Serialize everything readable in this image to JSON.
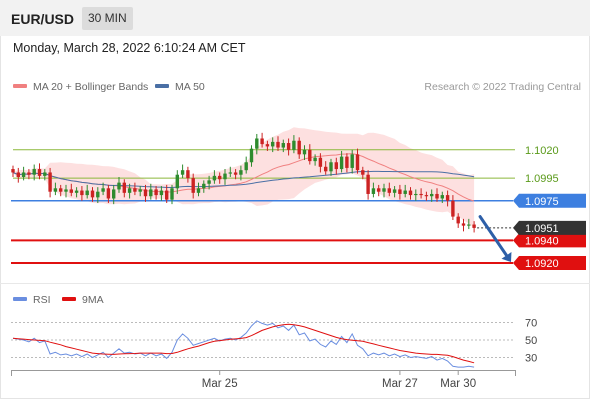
{
  "header": {
    "pair": "EUR/USD",
    "timeframe": "30 MIN",
    "datetime": "Monday, March 28, 2022 6:10:24 AM CET"
  },
  "colors": {
    "candle_up": "#2e8b2e",
    "candle_down": "#cc2222",
    "ma20": "#f08080",
    "ma50": "#4a6fa5",
    "bollinger_fill": "#fde0e0",
    "resistance": "#8bb83a",
    "pivot": "#3d7fe0",
    "support": "#e01010",
    "price_tag": "#333333",
    "arrow": "#2d5fa8",
    "rsi": "#6a8ee0",
    "rsi_ma": "#e01010"
  },
  "chart_data": [
    {
      "type": "candlestick",
      "legend": [
        {
          "name": "MA 20 + Bollinger Bands",
          "color": "#f08080"
        },
        {
          "name": "MA 50",
          "color": "#4a6fa5"
        }
      ],
      "credit": "Research © 2022 Trading Central",
      "ylim": [
        1.0905,
        1.1064
      ],
      "x_ticks": [
        {
          "label": "Mar 25",
          "index": 39
        },
        {
          "label": "Mar 27",
          "index": 73
        },
        {
          "label": "Mar 30",
          "index": 84
        }
      ],
      "levels": [
        {
          "value": 1.102,
          "label": "1.1020",
          "kind": "resistance"
        },
        {
          "value": 1.0995,
          "label": "1.0995",
          "kind": "resistance"
        },
        {
          "value": 1.0975,
          "label": "1.0975",
          "kind": "pivot"
        },
        {
          "value": 1.094,
          "label": "1.0940",
          "kind": "support"
        },
        {
          "value": 1.092,
          "label": "1.0920",
          "kind": "support"
        }
      ],
      "last_price": {
        "value": 1.0951,
        "label": "1.0951"
      },
      "projection": {
        "from": 1.0961,
        "to": 1.092
      },
      "candles": [
        [
          1.1003,
          1.1
        ],
        [
          1.1,
          1.0996
        ],
        [
          1.0996,
          1.1
        ],
        [
          1.1,
          1.0998
        ],
        [
          1.0998,
          1.1003
        ],
        [
          1.1003,
          1.0997
        ],
        [
          1.0997,
          1.1
        ],
        [
          1.1,
          1.0983
        ],
        [
          1.0983,
          1.0986
        ],
        [
          1.0986,
          1.0983
        ],
        [
          1.0983,
          1.0985
        ],
        [
          1.0985,
          1.0982
        ],
        [
          1.0982,
          1.0984
        ],
        [
          1.0984,
          1.098
        ],
        [
          1.098,
          1.0984
        ],
        [
          1.0984,
          1.0978
        ],
        [
          1.0978,
          1.0983
        ],
        [
          1.0983,
          1.0986
        ],
        [
          1.0986,
          1.0977
        ],
        [
          1.0977,
          1.0985
        ],
        [
          1.0985,
          1.0991
        ],
        [
          1.0991,
          1.0982
        ],
        [
          1.0982,
          1.0986
        ],
        [
          1.0986,
          1.0983
        ],
        [
          1.0983,
          1.0985
        ],
        [
          1.0985,
          1.0979
        ],
        [
          1.0979,
          1.0985
        ],
        [
          1.0985,
          1.098
        ],
        [
          1.098,
          1.0984
        ],
        [
          1.0984,
          1.0976
        ],
        [
          1.0976,
          1.0986
        ],
        [
          1.0986,
          1.0998
        ],
        [
          1.0998,
          1.1002
        ],
        [
          1.1002,
          1.0995
        ],
        [
          1.0995,
          1.0982
        ],
        [
          1.0982,
          1.0986
        ],
        [
          1.0986,
          1.099
        ],
        [
          1.099,
          1.0993
        ],
        [
          1.0993,
          1.0997
        ],
        [
          1.0997,
          1.0994
        ],
        [
          1.0994,
          1.0999
        ],
        [
          1.0999,
          1.1
        ],
        [
          1.1,
          1.0998
        ],
        [
          1.0998,
          1.1002
        ],
        [
          1.1002,
          1.1009
        ],
        [
          1.1009,
          1.1021
        ],
        [
          1.1021,
          1.103
        ],
        [
          1.103,
          1.1025
        ],
        [
          1.1025,
          1.1023
        ],
        [
          1.1023,
          1.1027
        ],
        [
          1.1027,
          1.1022
        ],
        [
          1.1022,
          1.1026
        ],
        [
          1.1026,
          1.102
        ],
        [
          1.102,
          1.1028
        ],
        [
          1.1028,
          1.1016
        ],
        [
          1.1016,
          1.102
        ],
        [
          1.102,
          1.101
        ],
        [
          1.101,
          1.1013
        ],
        [
          1.1013,
          1.1005
        ],
        [
          1.1005,
          1.1001
        ],
        [
          1.1001,
          1.1009
        ],
        [
          1.1009,
          1.1003
        ],
        [
          1.1003,
          1.1014
        ],
        [
          1.1014,
          1.1004
        ],
        [
          1.1004,
          1.1016
        ],
        [
          1.1016,
          1.1002
        ],
        [
          1.1002,
          1.0998
        ],
        [
          1.0998,
          1.0981
        ],
        [
          1.0981,
          1.0986
        ],
        [
          1.0986,
          1.0983
        ],
        [
          1.0983,
          1.0986
        ],
        [
          1.0986,
          1.0982
        ],
        [
          1.0982,
          1.0985
        ],
        [
          1.0985,
          1.0981
        ],
        [
          1.0981,
          1.0984
        ],
        [
          1.0984,
          1.098
        ],
        [
          1.098,
          1.0981
        ],
        [
          1.0981,
          1.098
        ],
        [
          1.098,
          1.0979
        ],
        [
          1.0979,
          1.0981
        ],
        [
          1.0981,
          1.0977
        ],
        [
          1.0977,
          1.098
        ],
        [
          1.098,
          1.0975
        ],
        [
          1.0975,
          1.0961
        ],
        [
          1.0961,
          1.0955
        ],
        [
          1.0955,
          1.0953
        ],
        [
          1.0953,
          1.0954
        ],
        [
          1.0954,
          1.0951
        ]
      ]
    },
    {
      "type": "line",
      "legend": [
        {
          "name": "RSI",
          "color": "#6a8ee0"
        },
        {
          "name": "9MA",
          "color": "#e01010"
        }
      ],
      "ylim": [
        18,
        82
      ],
      "y_ticks": [
        {
          "value": 70,
          "label": "70"
        },
        {
          "value": 50,
          "label": "50"
        },
        {
          "value": 30,
          "label": "30"
        }
      ],
      "rsi": [
        52,
        51,
        50,
        48,
        52,
        47,
        49,
        34,
        36,
        33,
        34,
        32,
        34,
        31,
        34,
        30,
        33,
        36,
        30,
        35,
        40,
        35,
        36,
        34,
        35,
        32,
        35,
        32,
        34,
        29,
        36,
        50,
        57,
        52,
        44,
        46,
        48,
        50,
        52,
        49,
        51,
        52,
        50,
        53,
        58,
        66,
        72,
        69,
        67,
        69,
        64,
        66,
        61,
        67,
        56,
        58,
        49,
        51,
        45,
        42,
        49,
        45,
        54,
        47,
        57,
        44,
        40,
        32,
        35,
        33,
        35,
        32,
        34,
        31,
        33,
        30,
        31,
        30,
        29,
        31,
        27,
        29,
        26,
        20,
        19,
        19,
        20,
        19
      ],
      "rsi_ma": [
        52,
        51.5,
        51,
        50.5,
        50,
        49.6,
        49.2,
        47.5,
        46,
        44.5,
        42.5,
        41,
        39.5,
        38,
        36.5,
        35,
        34.5,
        34,
        33.8,
        33.6,
        34,
        34.2,
        34.4,
        34.6,
        35,
        35,
        35,
        35,
        35,
        34.5,
        34.6,
        36,
        38,
        40,
        41.5,
        43,
        45,
        47,
        48.5,
        49.3,
        50,
        50.8,
        51.2,
        51.8,
        52.8,
        55,
        58,
        61,
        63,
        65,
        66.5,
        67.5,
        68,
        67.5,
        66.5,
        65,
        63,
        61,
        59,
        57,
        55,
        53,
        51.5,
        50.5,
        49.8,
        49.2,
        48.5,
        47,
        45.5,
        44,
        42.5,
        41,
        39.5,
        38,
        37,
        36,
        35,
        34.5,
        34,
        33.5,
        33.5,
        33,
        32.5,
        31,
        29,
        27,
        25.5,
        24
      ]
    }
  ]
}
